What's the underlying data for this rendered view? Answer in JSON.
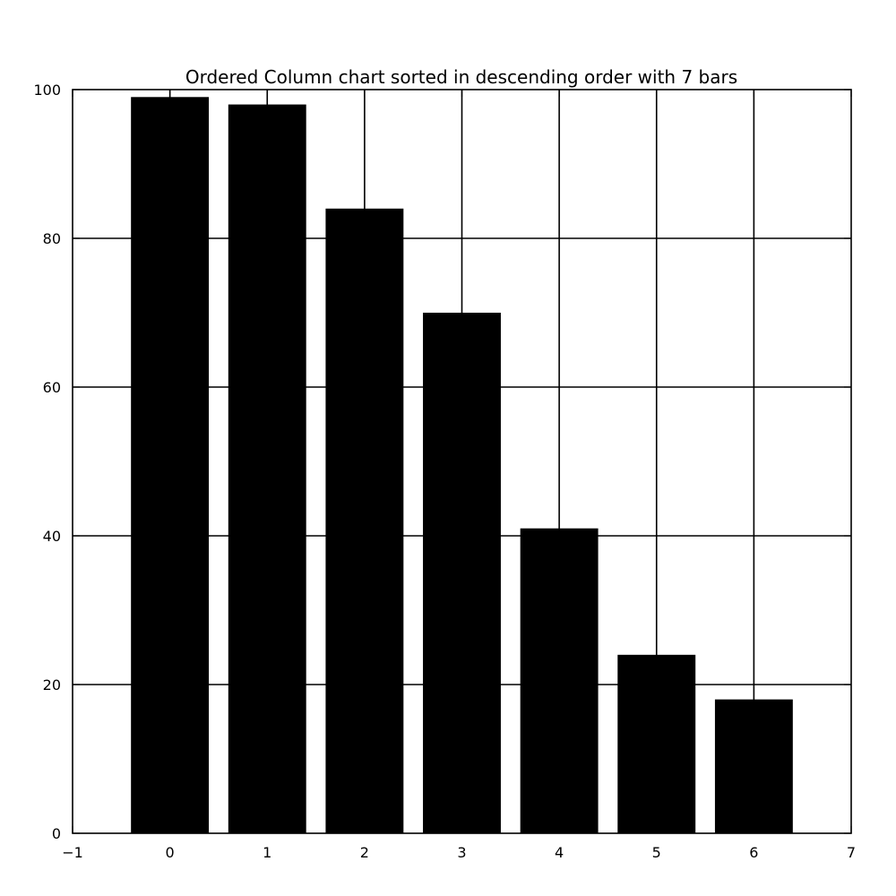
{
  "chart_data": {
    "type": "bar",
    "title": "Ordered Column chart sorted in descending order with 7 bars",
    "xlabel": "",
    "ylabel": "",
    "x": [
      0,
      1,
      2,
      3,
      4,
      5,
      6
    ],
    "values": [
      99,
      98,
      84,
      70,
      41,
      24,
      18
    ],
    "bar_width": 0.8,
    "xlim": [
      -1,
      7
    ],
    "ylim": [
      0,
      100
    ],
    "xticks": [
      -1,
      0,
      1,
      2,
      3,
      4,
      5,
      6,
      7
    ],
    "xtick_labels": [
      "−1",
      "0",
      "1",
      "2",
      "3",
      "4",
      "5",
      "6",
      "7"
    ],
    "yticks": [
      0,
      20,
      40,
      60,
      80,
      100
    ],
    "ytick_labels": [
      "0",
      "20",
      "40",
      "60",
      "80",
      "100"
    ],
    "grid": true,
    "legend": "none",
    "colors": {
      "bar": "#000000",
      "grid": "#000000",
      "axes": "#000000",
      "background": "#ffffff"
    }
  }
}
